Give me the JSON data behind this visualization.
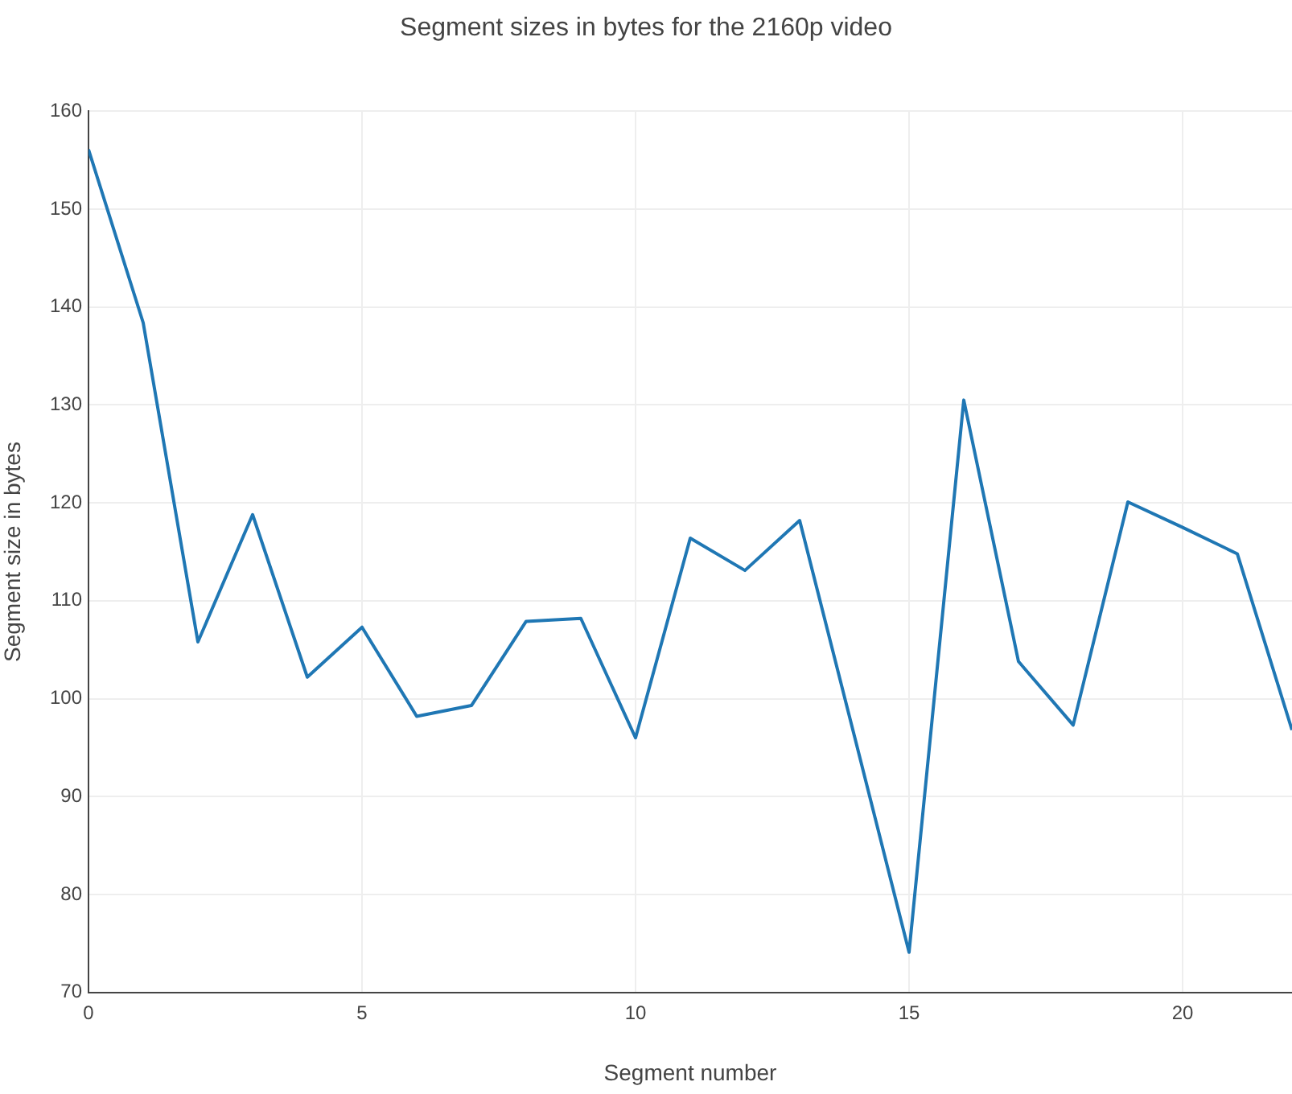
{
  "chart_data": {
    "type": "line",
    "title": "Segment sizes in bytes for the 2160p video",
    "xlabel": "Segment number",
    "ylabel": "Segment size in bytes",
    "x": [
      0,
      1,
      2,
      3,
      4,
      5,
      6,
      7,
      8,
      9,
      10,
      11,
      12,
      13,
      14,
      15,
      16,
      17,
      18,
      19,
      20,
      21,
      22
    ],
    "series": [
      {
        "color": "#1f77b4",
        "values": [
          156.1,
          138.4,
          105.8,
          118.8,
          102.2,
          107.3,
          98.2,
          99.3,
          107.9,
          108.2,
          96.0,
          116.4,
          113.1,
          118.2,
          96.2,
          74.1,
          130.5,
          103.8,
          97.3,
          120.1,
          117.5,
          114.8,
          96.8
        ]
      }
    ],
    "xlim": [
      0,
      22
    ],
    "xticks": [
      0,
      5,
      10,
      15,
      20
    ],
    "ylim": [
      70,
      160
    ],
    "yticks": [
      70,
      80,
      90,
      100,
      110,
      120,
      130,
      140,
      150,
      160
    ],
    "grid": true,
    "legend": false,
    "marker": "none",
    "line_style": "solid"
  }
}
